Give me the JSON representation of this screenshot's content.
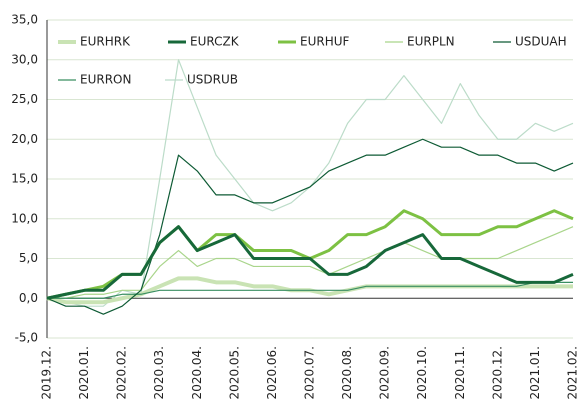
{
  "chart_data": {
    "type": "line",
    "categories": [
      "2019.12.",
      null,
      "2020.01.",
      null,
      "2020.02.",
      null,
      "2020.03.",
      null,
      "2020.04.",
      null,
      "2020.05.",
      null,
      "2020.06.",
      null,
      "2020.07.",
      null,
      "2020.08.",
      null,
      "2020.09.",
      null,
      "2020.10.",
      null,
      "2020.11.",
      null,
      "2020.12.",
      null,
      "2021.01.",
      null,
      "2021.02."
    ],
    "series": [
      {
        "name": "EURHRK",
        "color": "#c9e3b4",
        "width": 4,
        "values": [
          0,
          -0.5,
          -0.5,
          -0.5,
          0,
          0.5,
          1.5,
          2.5,
          2.5,
          2,
          2,
          1.5,
          1.5,
          1,
          1,
          0.5,
          1,
          1.5,
          1.5,
          1.5,
          1.5,
          1.5,
          1.5,
          1.5,
          1.5,
          1.5,
          1.5,
          1.5,
          1.5
        ]
      },
      {
        "name": "EURCZK",
        "color": "#17683a",
        "width": 3,
        "values": [
          0,
          0.5,
          1,
          1,
          3,
          3,
          7,
          9,
          6,
          7,
          8,
          5,
          5,
          5,
          5,
          3,
          3,
          4,
          6,
          7,
          8,
          5,
          5,
          4,
          3,
          2,
          2,
          2,
          3
        ]
      },
      {
        "name": "EURHUF",
        "color": "#7dc143",
        "width": 3,
        "values": [
          0,
          0.5,
          1,
          1.5,
          3,
          3,
          7,
          9,
          6,
          8,
          8,
          6,
          6,
          6,
          5,
          6,
          8,
          8,
          9,
          11,
          10,
          8,
          8,
          8,
          9,
          9,
          10,
          11,
          10
        ]
      },
      {
        "name": "EURPLN",
        "color": "#a9d58b",
        "width": 1.2,
        "values": [
          0,
          0,
          0.5,
          0.5,
          1,
          1,
          4,
          6,
          4,
          5,
          5,
          4,
          4,
          4,
          4,
          3,
          4,
          5,
          6,
          7,
          6,
          5,
          5,
          5,
          5,
          6,
          7,
          8,
          9
        ]
      },
      {
        "name": "USDUAH",
        "color": "#0d5a34",
        "width": 1.2,
        "values": [
          0,
          -1,
          -1,
          -2,
          -1,
          1,
          8,
          18,
          16,
          13,
          13,
          12,
          12,
          13,
          14,
          16,
          17,
          18,
          18,
          19,
          20,
          19,
          19,
          18,
          18,
          17,
          17,
          16,
          17
        ]
      },
      {
        "name": "EURRON",
        "color": "#3a8f62",
        "width": 1.2,
        "values": [
          0,
          0,
          0,
          0,
          0.5,
          0.5,
          1,
          1,
          1,
          1,
          1,
          1,
          1,
          1,
          1,
          1,
          1,
          1.5,
          1.5,
          1.5,
          1.5,
          1.5,
          1.5,
          1.5,
          1.5,
          1.5,
          2,
          2,
          2
        ]
      },
      {
        "name": "USDRUB",
        "color": "#bcdcc9",
        "width": 1.2,
        "values": [
          0,
          -0.5,
          -1,
          -1,
          1,
          0.5,
          15,
          30,
          24,
          18,
          15,
          12,
          11,
          12,
          14,
          17,
          22,
          25,
          25,
          28,
          25,
          22,
          27,
          23,
          20,
          20,
          22,
          21,
          22
        ]
      }
    ],
    "ylim": [
      -5,
      35
    ],
    "yticks": [
      {
        "value": -5,
        "label": "-5,0"
      },
      {
        "value": 0,
        "label": "0,0"
      },
      {
        "value": 5,
        "label": "5,0"
      },
      {
        "value": 10,
        "label": "10,0"
      },
      {
        "value": 15,
        "label": "15,0"
      },
      {
        "value": 20,
        "label": "20,0"
      },
      {
        "value": 25,
        "label": "25,0"
      },
      {
        "value": 30,
        "label": "30,0"
      },
      {
        "value": 35,
        "label": "35,0"
      }
    ],
    "grid": true
  }
}
